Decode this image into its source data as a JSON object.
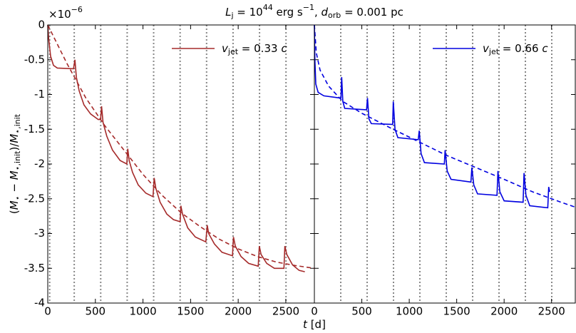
{
  "figure": {
    "title_parts": [
      "L",
      "j",
      " = 10",
      "44",
      " erg s",
      "−1",
      ",  ",
      "d",
      "orb",
      " = 0.001 pc"
    ],
    "ylabel_parts": [
      "(",
      "M",
      "⋆",
      " − ",
      "M",
      "⋆,init",
      ")/",
      "M",
      "⋆,init"
    ],
    "offset_parts": [
      "×10",
      "−6"
    ],
    "xlabel_parts": [
      "t",
      " [d]"
    ]
  },
  "chart_data": [
    {
      "type": "line",
      "xlim": [
        0,
        2800
      ],
      "ylim": [
        -4,
        0
      ],
      "xticks": [
        0,
        500,
        1000,
        1500,
        2000,
        2500
      ],
      "yticks": [
        0,
        -0.5,
        -1,
        -1.5,
        -2,
        -2.5,
        -3,
        -3.5,
        -4
      ],
      "vlines": [
        20,
        278,
        556,
        834,
        1112,
        1390,
        1668,
        1946,
        2224,
        2502
      ],
      "series": [
        {
          "name": [
            "v",
            "jet",
            " = 0.33 ",
            "c"
          ],
          "color": "#a52a2a",
          "dashed": false,
          "x": [
            0,
            10,
            30,
            60,
            100,
            270,
            285,
            300,
            330,
            380,
            450,
            530,
            555,
            565,
            580,
            620,
            680,
            760,
            830,
            840,
            855,
            890,
            950,
            1030,
            1105,
            1118,
            1135,
            1180,
            1250,
            1320,
            1390,
            1398,
            1415,
            1470,
            1550,
            1660,
            1675,
            1690,
            1750,
            1830,
            1940,
            1950,
            1970,
            2030,
            2110,
            2210,
            2222,
            2240,
            2300,
            2380,
            2480,
            2490,
            2510,
            2570,
            2640,
            2700
          ],
          "values": [
            0,
            -0.2,
            -0.45,
            -0.58,
            -0.62,
            -0.63,
            -0.5,
            -0.75,
            -0.95,
            -1.15,
            -1.28,
            -1.36,
            -1.36,
            -1.17,
            -1.4,
            -1.6,
            -1.8,
            -1.95,
            -2.0,
            -1.78,
            -1.95,
            -2.12,
            -2.3,
            -2.42,
            -2.47,
            -2.2,
            -2.35,
            -2.55,
            -2.72,
            -2.8,
            -2.83,
            -2.6,
            -2.72,
            -2.92,
            -3.05,
            -3.12,
            -2.88,
            -3.0,
            -3.15,
            -3.27,
            -3.32,
            -3.05,
            -3.18,
            -3.33,
            -3.43,
            -3.47,
            -3.18,
            -3.3,
            -3.43,
            -3.5,
            -3.5,
            -3.18,
            -3.3,
            -3.45,
            -3.53,
            -3.55
          ]
        },
        {
          "color": "#a52a2a",
          "dashed": true,
          "x": [
            0,
            200,
            400,
            600,
            800,
            1000,
            1200,
            1400,
            1600,
            1800,
            2000,
            2200,
            2400,
            2600,
            2800
          ],
          "values": [
            0,
            -0.55,
            -1.05,
            -1.45,
            -1.8,
            -2.15,
            -2.45,
            -2.7,
            -2.9,
            -3.08,
            -3.22,
            -3.33,
            -3.41,
            -3.46,
            -3.5
          ]
        }
      ]
    },
    {
      "type": "line",
      "xlim": [
        0,
        2750
      ],
      "ylim": [
        -4,
        0
      ],
      "xticks": [
        0,
        500,
        1000,
        1500,
        2000,
        2500
      ],
      "vlines": [
        278,
        556,
        834,
        1112,
        1390,
        1668,
        1946,
        2224,
        2502
      ],
      "series": [
        {
          "name": [
            "v",
            "jet",
            " = 0.66 ",
            "c"
          ],
          "color": "#0000e0",
          "dashed": false,
          "x": [
            0,
            5,
            15,
            40,
            100,
            270,
            280,
            288,
            300,
            320,
            540,
            550,
            560,
            575,
            600,
            820,
            825,
            832,
            850,
            880,
            1095,
            1105,
            1125,
            1160,
            1370,
            1378,
            1400,
            1440,
            1650,
            1660,
            1680,
            1720,
            1925,
            1935,
            1955,
            2000,
            2200,
            2210,
            2230,
            2270,
            2460,
            2470,
            2480
          ],
          "values": [
            0,
            -0.5,
            -0.85,
            -0.97,
            -1.02,
            -1.05,
            -1.05,
            -0.75,
            -1.1,
            -1.2,
            -1.22,
            -1.22,
            -1.05,
            -1.35,
            -1.42,
            -1.43,
            -1.43,
            -1.1,
            -1.5,
            -1.62,
            -1.65,
            -1.52,
            -1.85,
            -1.98,
            -2.0,
            -1.8,
            -2.1,
            -2.22,
            -2.26,
            -2.05,
            -2.3,
            -2.43,
            -2.45,
            -2.1,
            -2.4,
            -2.53,
            -2.55,
            -2.13,
            -2.45,
            -2.6,
            -2.63,
            -2.33,
            -2.4
          ]
        },
        {
          "color": "#0000e0",
          "dashed": true,
          "x": [
            0,
            20,
            60,
            150,
            300,
            500,
            800,
            1100,
            1400,
            1700,
            2000,
            2300,
            2600,
            2750
          ],
          "values": [
            0,
            -0.4,
            -0.65,
            -0.88,
            -1.1,
            -1.27,
            -1.48,
            -1.68,
            -1.88,
            -2.05,
            -2.22,
            -2.4,
            -2.55,
            -2.62
          ]
        }
      ]
    }
  ]
}
